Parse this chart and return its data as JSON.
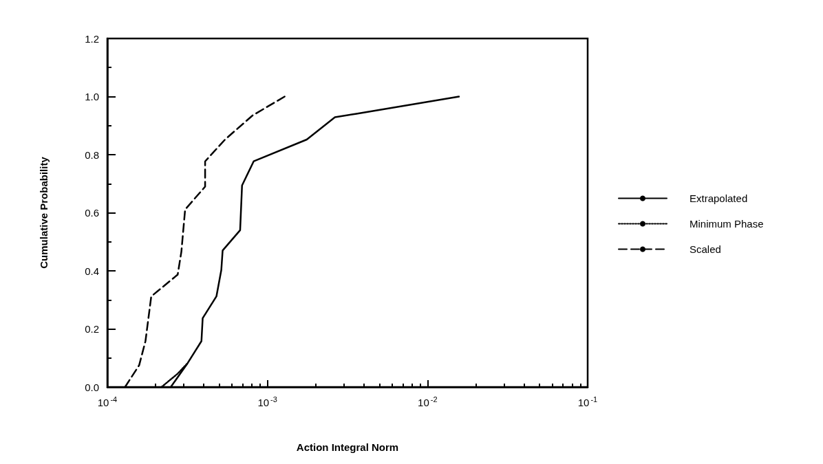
{
  "chart_data": {
    "type": "line",
    "xlabel": "Action Integral Norm",
    "ylabel": "Cumulative Probability",
    "log": "x",
    "xlim": [
      0.0001,
      0.1
    ],
    "xticks": [
      {
        "value": 0.0001,
        "label": "10$^{-4}$"
      },
      {
        "value": 0.001,
        "label": "10$^{-3}$"
      },
      {
        "value": 0.01,
        "label": "10$^{-2}$"
      },
      {
        "value": 0.1,
        "label": "10$^{-1}$"
      }
    ],
    "ylim": [
      0,
      1.2
    ],
    "yticks": [
      {
        "value": 0,
        "label": "0.0"
      },
      {
        "value": 0.2,
        "label": "0.2"
      },
      {
        "value": 0.4,
        "label": "0.4"
      },
      {
        "value": 0.6,
        "label": "0.6"
      },
      {
        "value": 0.8,
        "label": "0.8"
      },
      {
        "value": 1,
        "label": "1.0"
      },
      {
        "value": 1.2,
        "label": "1.2"
      }
    ],
    "grid": false,
    "legend": "right",
    "marker": "none",
    "series": [
      {
        "name": "Extrapolated",
        "color": "#000000",
        "line_style": "solid",
        "x": [
          0.000249,
          0.000318,
          0.000387,
          0.000394,
          0.00048,
          0.000515,
          0.000525,
          0.000675,
          0.000694,
          0.00082,
          0.00176,
          0.00264,
          0.0036,
          0.0157
        ],
        "values": [
          0,
          0.083,
          0.158,
          0.237,
          0.312,
          0.403,
          0.47,
          0.54,
          0.694,
          0.777,
          0.852,
          0.929,
          0.941,
          1.0
        ]
      },
      {
        "name": "Minimum Phase",
        "color": "#000000",
        "line_style": "dotted",
        "x": [
          0.000218,
          0.000275,
          0.000318
        ],
        "values": [
          0,
          0.046,
          0.083
        ]
      },
      {
        "name": "Scaled",
        "color": "#000000",
        "line_style": "dashed",
        "x": [
          0.000129,
          0.000158,
          0.000173,
          0.000188,
          0.000275,
          0.00029,
          0.000306,
          0.000408,
          0.000408,
          0.000543,
          0.000807,
          0.00128
        ],
        "values": [
          0,
          0.075,
          0.158,
          0.312,
          0.387,
          0.466,
          0.611,
          0.69,
          0.777,
          0.852,
          0.935,
          1.0
        ]
      }
    ]
  }
}
